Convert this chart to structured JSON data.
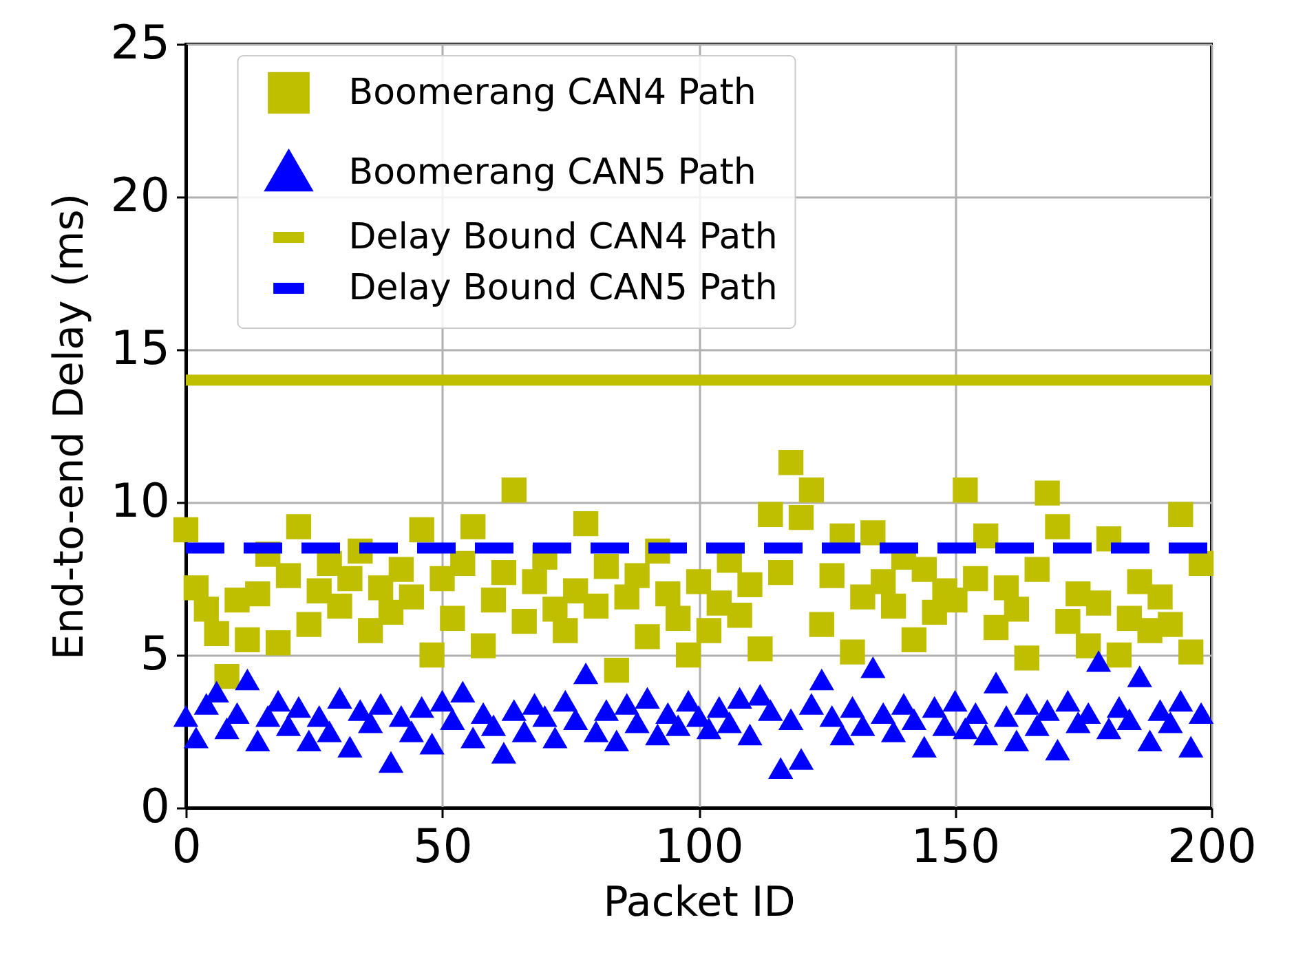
{
  "chart_data": {
    "type": "scatter",
    "xlabel": "Packet ID",
    "ylabel": "End-to-end Delay (ms)",
    "xlim": [
      0,
      200
    ],
    "xticks": [
      0,
      50,
      100,
      150,
      200
    ],
    "ylim": [
      0,
      25
    ],
    "yticks": [
      0,
      5,
      10,
      15,
      20,
      25
    ],
    "grid": true,
    "legend": "top",
    "series": [
      {
        "name": "Boomerang CAN4 Path",
        "marker": "square",
        "color": "#bfbf00",
        "x": [
          0,
          2,
          4,
          6,
          8,
          10,
          12,
          14,
          16,
          18,
          20,
          22,
          24,
          26,
          28,
          30,
          32,
          34,
          36,
          38,
          40,
          42,
          44,
          46,
          48,
          50,
          52,
          54,
          56,
          58,
          60,
          62,
          64,
          66,
          68,
          70,
          72,
          74,
          76,
          78,
          80,
          82,
          84,
          86,
          88,
          90,
          92,
          94,
          96,
          98,
          100,
          102,
          104,
          106,
          108,
          110,
          112,
          114,
          116,
          118,
          120,
          122,
          124,
          126,
          128,
          130,
          132,
          134,
          136,
          138,
          140,
          142,
          144,
          146,
          148,
          150,
          152,
          154,
          156,
          158,
          160,
          162,
          164,
          166,
          168,
          170,
          172,
          174,
          176,
          178,
          180,
          182,
          184,
          186,
          188,
          190,
          192,
          194,
          196,
          198
        ],
        "values": [
          9.1,
          7.2,
          6.5,
          5.7,
          4.3,
          6.8,
          5.5,
          7.0,
          8.3,
          5.4,
          7.6,
          9.2,
          6.0,
          7.1,
          8.0,
          6.6,
          7.5,
          8.4,
          5.8,
          7.2,
          6.4,
          7.8,
          6.9,
          9.1,
          5.0,
          7.5,
          6.2,
          8.0,
          9.2,
          5.3,
          6.8,
          7.7,
          10.4,
          6.1,
          7.4,
          8.2,
          6.5,
          5.8,
          7.1,
          9.3,
          6.6,
          7.9,
          4.5,
          6.9,
          7.6,
          5.6,
          8.4,
          7.0,
          6.2,
          5.0,
          7.4,
          5.8,
          6.7,
          8.1,
          6.3,
          7.3,
          5.2,
          9.6,
          7.7,
          11.3,
          9.5,
          10.4,
          6.0,
          7.6,
          8.9,
          5.1,
          6.9,
          9.0,
          7.4,
          6.6,
          8.2,
          5.5,
          7.8,
          6.4,
          7.1,
          6.8,
          10.4,
          7.5,
          8.9,
          5.9,
          7.2,
          6.5,
          4.9,
          7.8,
          10.3,
          9.2,
          6.1,
          7.0,
          5.3,
          6.7,
          8.8,
          5.0,
          6.2,
          7.4,
          5.8,
          6.9,
          6.0,
          9.6,
          5.1,
          8.0
        ]
      },
      {
        "name": "Boomerang CAN5 Path",
        "marker": "triangle",
        "color": "#0000ff",
        "x": [
          0,
          2,
          4,
          6,
          8,
          10,
          12,
          14,
          16,
          18,
          20,
          22,
          24,
          26,
          28,
          30,
          32,
          34,
          36,
          38,
          40,
          42,
          44,
          46,
          48,
          50,
          52,
          54,
          56,
          58,
          60,
          62,
          64,
          66,
          68,
          70,
          72,
          74,
          76,
          78,
          80,
          82,
          84,
          86,
          88,
          90,
          92,
          94,
          96,
          98,
          100,
          102,
          104,
          106,
          108,
          110,
          112,
          114,
          116,
          118,
          120,
          122,
          124,
          126,
          128,
          130,
          132,
          134,
          136,
          138,
          140,
          142,
          144,
          146,
          148,
          150,
          152,
          154,
          156,
          158,
          160,
          162,
          164,
          166,
          168,
          170,
          172,
          174,
          176,
          178,
          180,
          182,
          184,
          186,
          188,
          190,
          192,
          194,
          196,
          198
        ],
        "values": [
          3.0,
          2.3,
          3.4,
          3.8,
          2.6,
          3.1,
          4.2,
          2.2,
          3.0,
          3.5,
          2.7,
          3.3,
          2.2,
          3.0,
          2.5,
          3.6,
          2.0,
          3.2,
          2.8,
          3.4,
          1.5,
          3.0,
          2.5,
          3.3,
          2.1,
          3.5,
          2.9,
          3.8,
          2.3,
          3.1,
          2.7,
          1.8,
          3.2,
          2.5,
          3.4,
          3.0,
          2.3,
          3.5,
          2.9,
          4.4,
          2.5,
          3.2,
          2.2,
          3.4,
          2.8,
          3.6,
          2.4,
          3.1,
          2.7,
          3.5,
          3.0,
          2.6,
          3.3,
          2.8,
          3.6,
          2.4,
          3.7,
          3.2,
          1.3,
          2.9,
          1.6,
          3.4,
          4.2,
          3.0,
          2.4,
          3.3,
          2.7,
          4.6,
          3.1,
          2.5,
          3.4,
          2.9,
          2.0,
          3.3,
          2.7,
          3.5,
          2.6,
          3.1,
          2.4,
          4.1,
          3.0,
          2.2,
          3.4,
          2.7,
          3.2,
          1.9,
          3.5,
          2.8,
          3.1,
          4.8,
          2.6,
          3.3,
          2.9,
          4.3,
          2.2,
          3.2,
          2.8,
          3.5,
          2.0,
          3.1
        ]
      },
      {
        "name": "Delay Bound CAN4 Path",
        "type": "line",
        "line_style": "solid",
        "color": "#bfbf00",
        "x": [
          0,
          200
        ],
        "values": [
          14,
          14
        ]
      },
      {
        "name": "Delay Bound CAN5 Path",
        "type": "line",
        "line_style": "dashed",
        "color": "#0000ff",
        "x": [
          0,
          200
        ],
        "values": [
          8.5,
          8.5
        ]
      }
    ]
  }
}
